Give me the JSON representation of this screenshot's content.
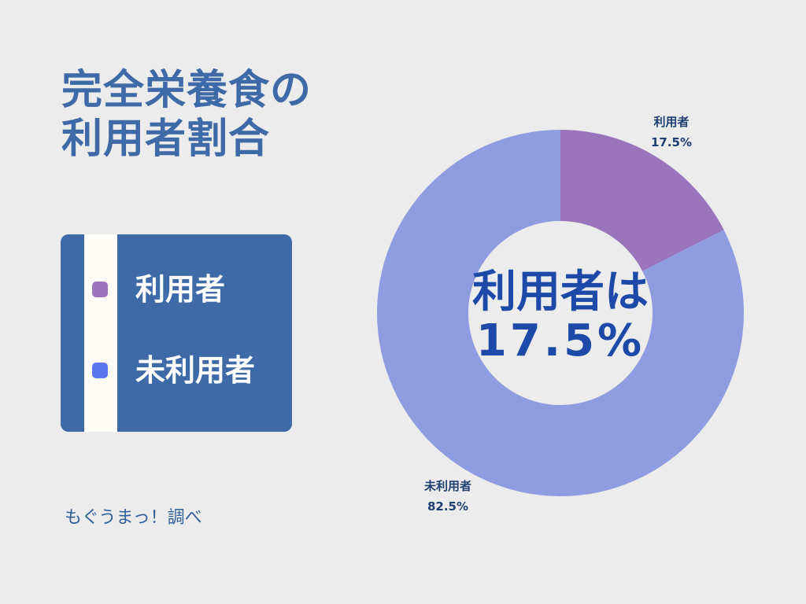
{
  "title_lines": [
    "完全栄養食の",
    "利用者割合"
  ],
  "legend": [
    {
      "label": "利用者",
      "color": "#9b75bc"
    },
    {
      "label": "未利用者",
      "color": "#5b76f0"
    }
  ],
  "source": "もぐうまっ！調べ",
  "center_text": {
    "line1": "利用者は",
    "line2": "17.5%"
  },
  "chart_data": {
    "type": "pie",
    "title": "完全栄養食の利用者割合",
    "categories": [
      "利用者",
      "未利用者"
    ],
    "values": [
      17.5,
      82.5
    ],
    "unit": "%",
    "colors": [
      "#9b75bc",
      "#8f9de0"
    ],
    "data_labels": [
      {
        "name": "利用者",
        "value": "17.5%"
      },
      {
        "name": "未利用者",
        "value": "82.5%"
      }
    ],
    "donut": true,
    "legend": "left"
  }
}
